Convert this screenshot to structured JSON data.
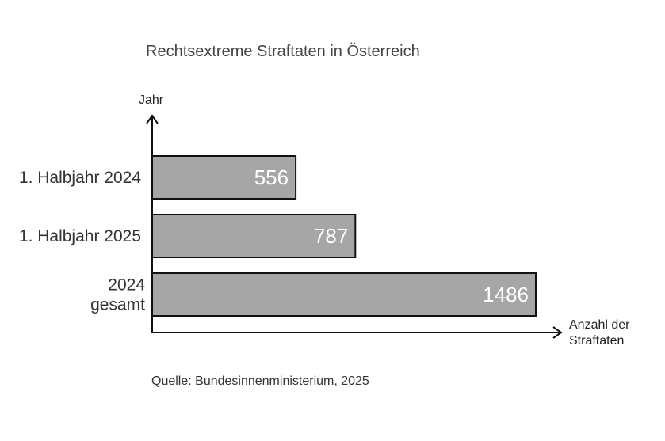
{
  "chart_data": {
    "type": "bar",
    "orientation": "horizontal",
    "title": "Rechtsextreme Straftaten in Österreich",
    "ylabel": "Jahr",
    "xlabel": [
      "Anzahl der",
      "Straftaten"
    ],
    "categories": [
      [
        "1. Halbjahr 2024"
      ],
      [
        "1. Halbjahr 2025"
      ],
      [
        "2024",
        "gesamt"
      ]
    ],
    "values": [
      556,
      787,
      1486
    ],
    "value_labels": [
      "556",
      "787",
      "1486"
    ],
    "source": "Quelle: Bundesinnenministerium, 2025",
    "bar_color": "#a6a6a6",
    "bar_border_color": "#111111",
    "value_label_color": "#ffffff",
    "grid": false
  }
}
